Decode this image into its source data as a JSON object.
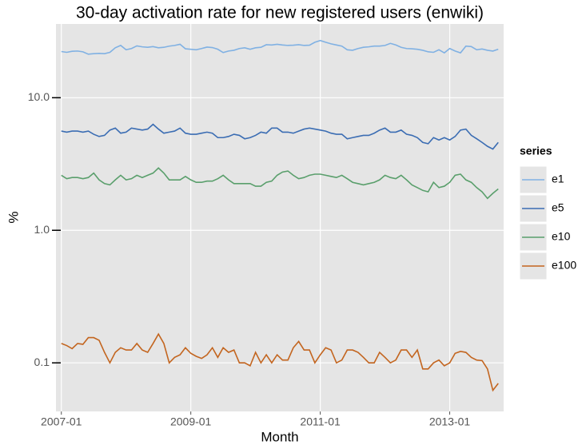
{
  "chart_data": {
    "type": "line",
    "title": "30-day activation rate for new registered users (enwiki)",
    "x_label": "Month",
    "y_label": "%",
    "legend_title": "series",
    "legend_position": "right",
    "log_scale_y": true,
    "grid": true,
    "x": [
      "2007-01",
      "2007-02",
      "2007-03",
      "2007-04",
      "2007-05",
      "2007-06",
      "2007-07",
      "2007-08",
      "2007-09",
      "2007-10",
      "2007-11",
      "2007-12",
      "2008-01",
      "2008-02",
      "2008-03",
      "2008-04",
      "2008-05",
      "2008-06",
      "2008-07",
      "2008-08",
      "2008-09",
      "2008-10",
      "2008-11",
      "2008-12",
      "2009-01",
      "2009-02",
      "2009-03",
      "2009-04",
      "2009-05",
      "2009-06",
      "2009-07",
      "2009-08",
      "2009-09",
      "2009-10",
      "2009-11",
      "2009-12",
      "2010-01",
      "2010-02",
      "2010-03",
      "2010-04",
      "2010-05",
      "2010-06",
      "2010-07",
      "2010-08",
      "2010-09",
      "2010-10",
      "2010-11",
      "2010-12",
      "2011-01",
      "2011-02",
      "2011-03",
      "2011-04",
      "2011-05",
      "2011-06",
      "2011-07",
      "2011-08",
      "2011-09",
      "2011-10",
      "2011-11",
      "2011-12",
      "2012-01",
      "2012-02",
      "2012-03",
      "2012-04",
      "2012-05",
      "2012-06",
      "2012-07",
      "2012-08",
      "2012-09",
      "2012-10",
      "2012-11",
      "2012-12",
      "2013-01",
      "2013-02",
      "2013-03",
      "2013-04",
      "2013-05",
      "2013-06",
      "2013-07",
      "2013-08",
      "2013-09",
      "2013-10"
    ],
    "series": [
      {
        "name": "e1",
        "color": "#80b1e3",
        "values": [
          22.3,
          22.0,
          22.4,
          22.5,
          22.2,
          21.3,
          21.5,
          21.6,
          21.5,
          22.0,
          23.8,
          24.8,
          23.0,
          23.5,
          24.6,
          24.2,
          24.0,
          24.3,
          23.8,
          24.0,
          24.5,
          24.8,
          25.3,
          23.4,
          23.2,
          23.0,
          23.5,
          24.1,
          23.9,
          23.2,
          21.9,
          22.5,
          22.8,
          23.5,
          23.8,
          23.2,
          23.8,
          24.0,
          25.1,
          25.0,
          25.3,
          25.0,
          24.8,
          24.9,
          25.1,
          24.8,
          24.9,
          26.2,
          27.0,
          26.2,
          25.5,
          25.0,
          24.5,
          23.0,
          22.8,
          23.5,
          24.0,
          24.2,
          24.5,
          24.5,
          24.8,
          25.7,
          25.0,
          24.0,
          23.5,
          23.4,
          23.2,
          22.8,
          22.2,
          22.0,
          23.0,
          21.8,
          23.5,
          22.5,
          21.8,
          24.5,
          24.3,
          23.0,
          23.3,
          22.8,
          22.5,
          23.2
        ]
      },
      {
        "name": "e5",
        "color": "#3b6db3",
        "values": [
          5.6,
          5.5,
          5.6,
          5.6,
          5.5,
          5.6,
          5.3,
          5.1,
          5.2,
          5.7,
          5.9,
          5.4,
          5.5,
          5.9,
          5.8,
          5.7,
          5.8,
          6.3,
          5.8,
          5.4,
          5.5,
          5.6,
          5.9,
          5.4,
          5.3,
          5.3,
          5.4,
          5.5,
          5.4,
          5.0,
          5.0,
          5.1,
          5.3,
          5.2,
          4.9,
          5.0,
          5.2,
          5.5,
          5.4,
          5.9,
          5.9,
          5.5,
          5.5,
          5.4,
          5.6,
          5.8,
          5.9,
          5.8,
          5.7,
          5.6,
          5.4,
          5.3,
          5.3,
          4.9,
          5.0,
          5.1,
          5.2,
          5.2,
          5.4,
          5.7,
          5.9,
          5.5,
          5.5,
          5.7,
          5.3,
          5.2,
          5.0,
          4.6,
          4.5,
          5.0,
          4.8,
          5.0,
          4.8,
          5.1,
          5.7,
          5.8,
          5.2,
          4.9,
          4.6,
          4.3,
          4.1,
          4.6
        ]
      },
      {
        "name": "e10",
        "color": "#5a9f6c",
        "values": [
          2.6,
          2.45,
          2.5,
          2.5,
          2.45,
          2.5,
          2.7,
          2.4,
          2.25,
          2.2,
          2.4,
          2.6,
          2.4,
          2.45,
          2.6,
          2.5,
          2.6,
          2.7,
          2.95,
          2.7,
          2.4,
          2.4,
          2.4,
          2.55,
          2.4,
          2.3,
          2.3,
          2.35,
          2.35,
          2.45,
          2.6,
          2.4,
          2.25,
          2.25,
          2.25,
          2.25,
          2.15,
          2.15,
          2.3,
          2.35,
          2.6,
          2.75,
          2.8,
          2.6,
          2.45,
          2.5,
          2.6,
          2.65,
          2.65,
          2.6,
          2.55,
          2.5,
          2.6,
          2.45,
          2.3,
          2.25,
          2.2,
          2.25,
          2.3,
          2.4,
          2.6,
          2.5,
          2.45,
          2.6,
          2.4,
          2.2,
          2.1,
          2.0,
          1.95,
          2.3,
          2.1,
          2.15,
          2.3,
          2.6,
          2.65,
          2.4,
          2.3,
          2.1,
          1.95,
          1.74,
          1.9,
          2.05
        ]
      },
      {
        "name": "e100",
        "color": "#c3651f",
        "values": [
          0.14,
          0.135,
          0.128,
          0.14,
          0.138,
          0.155,
          0.155,
          0.148,
          0.12,
          0.1,
          0.12,
          0.13,
          0.125,
          0.125,
          0.14,
          0.125,
          0.12,
          0.14,
          0.165,
          0.14,
          0.1,
          0.11,
          0.115,
          0.13,
          0.118,
          0.112,
          0.108,
          0.115,
          0.13,
          0.11,
          0.13,
          0.12,
          0.125,
          0.1,
          0.1,
          0.095,
          0.12,
          0.1,
          0.115,
          0.1,
          0.115,
          0.105,
          0.105,
          0.13,
          0.145,
          0.125,
          0.125,
          0.1,
          0.115,
          0.13,
          0.125,
          0.1,
          0.105,
          0.125,
          0.125,
          0.12,
          0.11,
          0.1,
          0.1,
          0.12,
          0.11,
          0.1,
          0.105,
          0.125,
          0.125,
          0.11,
          0.125,
          0.09,
          0.09,
          0.1,
          0.105,
          0.095,
          0.1,
          0.118,
          0.122,
          0.12,
          0.11,
          0.105,
          0.104,
          0.09,
          0.062,
          0.07
        ]
      }
    ],
    "xlim": [
      "2006-12",
      "2013-11"
    ],
    "xticks": [
      "2007-01",
      "2009-01",
      "2011-01",
      "2013-01"
    ],
    "ylim": [
      0.043,
      36
    ],
    "yticks": [
      0.1,
      {
        "value": 1,
        "label": "1.0"
      },
      {
        "value": 10,
        "label": "10.0"
      }
    ]
  }
}
